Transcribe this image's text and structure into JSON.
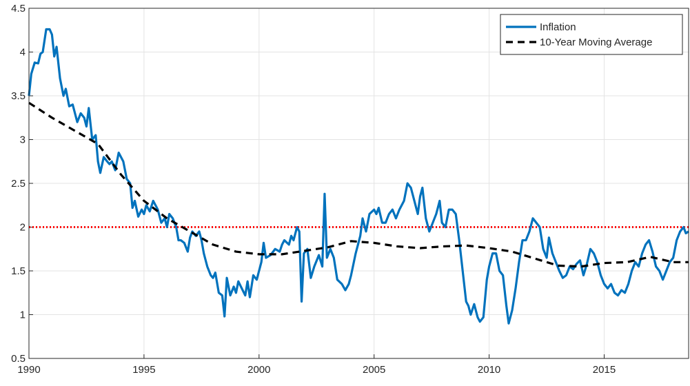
{
  "chart_data": {
    "type": "line",
    "xlim": [
      1990,
      2018.67
    ],
    "xticks": [
      1990,
      1995,
      2000,
      2005,
      2010,
      2015
    ],
    "ylim": [
      0.5,
      4.5
    ],
    "yticks": [
      0.5,
      1,
      1.5,
      2,
      2.5,
      3,
      3.5,
      4,
      4.5
    ],
    "grid": true,
    "legend": "northeast",
    "hline": {
      "value": 2,
      "color": "#ff0000"
    },
    "series": [
      {
        "name": "Inflation",
        "color": "#0072bd",
        "style": "solid",
        "x": [
          1990.0,
          1990.1,
          1990.25,
          1990.4,
          1990.5,
          1990.6,
          1990.75,
          1990.9,
          1991.0,
          1991.1,
          1991.2,
          1991.35,
          1991.5,
          1991.6,
          1991.75,
          1991.9,
          1992.0,
          1992.1,
          1992.25,
          1992.4,
          1992.5,
          1992.6,
          1992.75,
          1992.9,
          1993.0,
          1993.1,
          1993.25,
          1993.4,
          1993.5,
          1993.6,
          1993.75,
          1993.9,
          1994.0,
          1994.1,
          1994.25,
          1994.4,
          1994.5,
          1994.6,
          1994.75,
          1994.9,
          1995.0,
          1995.1,
          1995.25,
          1995.4,
          1995.5,
          1995.6,
          1995.75,
          1995.9,
          1996.0,
          1996.1,
          1996.25,
          1996.4,
          1996.5,
          1996.6,
          1996.75,
          1996.9,
          1997.0,
          1997.1,
          1997.25,
          1997.4,
          1997.5,
          1997.6,
          1997.75,
          1997.9,
          1998.0,
          1998.1,
          1998.25,
          1998.4,
          1998.5,
          1998.6,
          1998.75,
          1998.9,
          1999.0,
          1999.1,
          1999.25,
          1999.4,
          1999.5,
          1999.6,
          1999.75,
          1999.9,
          2000.0,
          2000.1,
          2000.2,
          2000.3,
          2000.5,
          2000.7,
          2000.9,
          2001.0,
          2001.1,
          2001.3,
          2001.4,
          2001.5,
          2001.65,
          2001.75,
          2001.85,
          2001.95,
          2002.1,
          2002.25,
          2002.4,
          2002.6,
          2002.75,
          2002.85,
          2002.95,
          2003.1,
          2003.25,
          2003.4,
          2003.6,
          2003.75,
          2003.9,
          2004.0,
          2004.2,
          2004.4,
          2004.5,
          2004.65,
          2004.8,
          2005.0,
          2005.1,
          2005.2,
          2005.35,
          2005.5,
          2005.65,
          2005.8,
          2005.95,
          2006.1,
          2006.3,
          2006.45,
          2006.6,
          2006.75,
          2006.9,
          2007.0,
          2007.1,
          2007.25,
          2007.4,
          2007.55,
          2007.7,
          2007.85,
          2007.95,
          2008.1,
          2008.25,
          2008.4,
          2008.55,
          2008.7,
          2008.85,
          2009.0,
          2009.1,
          2009.2,
          2009.35,
          2009.5,
          2009.6,
          2009.75,
          2009.9,
          2010.0,
          2010.15,
          2010.3,
          2010.45,
          2010.6,
          2010.75,
          2010.85,
          2011.0,
          2011.15,
          2011.3,
          2011.45,
          2011.6,
          2011.75,
          2011.9,
          2012.05,
          2012.2,
          2012.35,
          2012.5,
          2012.6,
          2012.75,
          2012.9,
          2013.05,
          2013.2,
          2013.35,
          2013.5,
          2013.65,
          2013.8,
          2013.95,
          2014.1,
          2014.25,
          2014.4,
          2014.55,
          2014.7,
          2014.85,
          2015.0,
          2015.15,
          2015.3,
          2015.45,
          2015.6,
          2015.75,
          2015.9,
          2016.05,
          2016.2,
          2016.35,
          2016.5,
          2016.65,
          2016.8,
          2016.95,
          2017.1,
          2017.25,
          2017.4,
          2017.55,
          2017.7,
          2017.85,
          2018.0,
          2018.15,
          2018.3,
          2018.45,
          2018.55,
          2018.67
        ],
        "values": [
          3.5,
          3.75,
          3.88,
          3.87,
          3.98,
          4.0,
          4.26,
          4.26,
          4.2,
          3.95,
          4.06,
          3.7,
          3.5,
          3.58,
          3.38,
          3.4,
          3.3,
          3.2,
          3.3,
          3.25,
          3.15,
          3.36,
          3.0,
          3.05,
          2.75,
          2.62,
          2.8,
          2.75,
          2.72,
          2.75,
          2.65,
          2.85,
          2.8,
          2.75,
          2.55,
          2.5,
          2.22,
          2.3,
          2.12,
          2.2,
          2.15,
          2.25,
          2.18,
          2.3,
          2.25,
          2.2,
          2.05,
          2.1,
          2.0,
          2.15,
          2.1,
          2.0,
          1.85,
          1.85,
          1.82,
          1.72,
          1.88,
          1.95,
          1.9,
          1.95,
          1.85,
          1.7,
          1.55,
          1.45,
          1.42,
          1.48,
          1.25,
          1.22,
          0.98,
          1.42,
          1.22,
          1.32,
          1.25,
          1.38,
          1.3,
          1.22,
          1.38,
          1.2,
          1.45,
          1.4,
          1.5,
          1.6,
          1.82,
          1.65,
          1.68,
          1.75,
          1.72,
          1.8,
          1.85,
          1.8,
          1.9,
          1.85,
          2.0,
          1.95,
          1.15,
          1.7,
          1.75,
          1.42,
          1.55,
          1.68,
          1.55,
          2.38,
          1.65,
          1.75,
          1.65,
          1.4,
          1.35,
          1.28,
          1.35,
          1.45,
          1.7,
          1.9,
          2.1,
          1.95,
          2.15,
          2.2,
          2.15,
          2.22,
          2.05,
          2.05,
          2.15,
          2.2,
          2.1,
          2.2,
          2.3,
          2.5,
          2.45,
          2.3,
          2.15,
          2.35,
          2.45,
          2.1,
          1.95,
          2.05,
          2.15,
          2.3,
          2.05,
          2.0,
          2.2,
          2.2,
          2.15,
          1.85,
          1.5,
          1.15,
          1.1,
          1.0,
          1.12,
          0.97,
          0.92,
          0.97,
          1.4,
          1.55,
          1.7,
          1.7,
          1.5,
          1.45,
          1.1,
          0.9,
          1.05,
          1.3,
          1.6,
          1.85,
          1.85,
          1.95,
          2.1,
          2.05,
          2.0,
          1.75,
          1.65,
          1.88,
          1.7,
          1.6,
          1.5,
          1.42,
          1.45,
          1.55,
          1.52,
          1.58,
          1.62,
          1.45,
          1.58,
          1.75,
          1.7,
          1.6,
          1.45,
          1.35,
          1.3,
          1.35,
          1.25,
          1.22,
          1.28,
          1.25,
          1.35,
          1.5,
          1.6,
          1.55,
          1.7,
          1.8,
          1.85,
          1.72,
          1.55,
          1.5,
          1.4,
          1.5,
          1.6,
          1.65,
          1.85,
          1.95,
          2.0,
          1.93,
          1.95
        ]
      },
      {
        "name": "10-Year Moving Average",
        "color": "#000000",
        "style": "dashed",
        "x": [
          1990,
          1991,
          1992,
          1993,
          1994,
          1995,
          1996,
          1997,
          1998,
          1999,
          2000,
          2001,
          2002,
          2003,
          2004,
          2005,
          2006,
          2007,
          2008,
          2009,
          2010,
          2011,
          2012,
          2013,
          2014,
          2015,
          2016,
          2017,
          2018,
          2018.67
        ],
        "values": [
          3.42,
          3.25,
          3.1,
          2.95,
          2.6,
          2.3,
          2.1,
          1.95,
          1.8,
          1.72,
          1.69,
          1.69,
          1.73,
          1.77,
          1.84,
          1.82,
          1.78,
          1.76,
          1.78,
          1.79,
          1.76,
          1.72,
          1.64,
          1.56,
          1.55,
          1.59,
          1.6,
          1.66,
          1.6,
          1.6
        ]
      }
    ]
  }
}
